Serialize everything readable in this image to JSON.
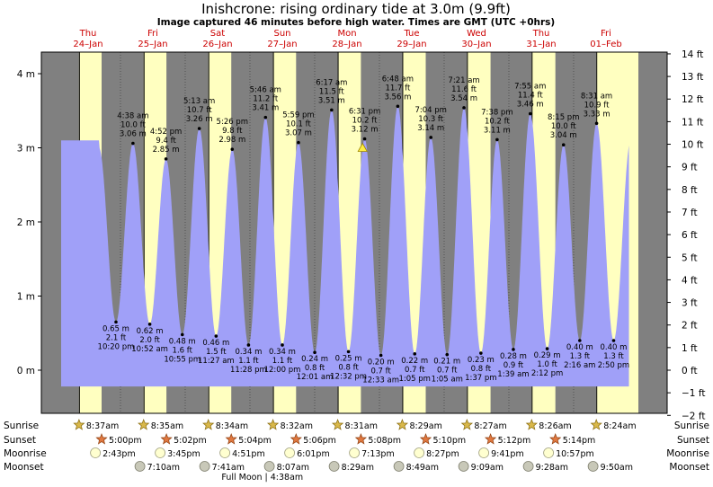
{
  "title": "Inishcrone: rising  ordinary tide at 3.0m (9.9ft)",
  "subtitle": "Image captured 46 minutes before high water. Times are GMT (UTC +0hrs)",
  "colors": {
    "night": "#808080",
    "day": "#ffffc0",
    "water": "#a0a0f8",
    "day_label": "#cc0000"
  },
  "days": [
    {
      "dow": "Thu",
      "date": "24–Jan"
    },
    {
      "dow": "Fri",
      "date": "25–Jan"
    },
    {
      "dow": "Sat",
      "date": "26–Jan"
    },
    {
      "dow": "Sun",
      "date": "27–Jan"
    },
    {
      "dow": "Mon",
      "date": "28–Jan"
    },
    {
      "dow": "Tue",
      "date": "29–Jan"
    },
    {
      "dow": "Wed",
      "date": "30–Jan"
    },
    {
      "dow": "Thu",
      "date": "31–Jan"
    },
    {
      "dow": "Fri",
      "date": "01–Feb"
    }
  ],
  "chart_data": {
    "type": "area",
    "ylabel_left_unit": "m",
    "ylabel_right_unit": "ft",
    "ylim_m": [
      -0.6,
      4.3
    ],
    "left_ticks": [
      "0 m",
      "1 m",
      "2 m",
      "3 m",
      "4 m"
    ],
    "right_ticks": [
      "−2 ft",
      "−1 ft",
      "0 ft",
      "1 ft",
      "2 ft",
      "3 ft",
      "4 ft",
      "5 ft",
      "6 ft",
      "7 ft",
      "8 ft",
      "9 ft",
      "10 ft",
      "11 ft",
      "12 ft",
      "13 ft",
      "14 ft"
    ],
    "x_range_hours": [
      0,
      216
    ],
    "tides": [
      {
        "type": "low",
        "time": "10:20 pm",
        "m": "0.65 m",
        "ft": "2.1 ft",
        "h": 22.33,
        "v": 0.65
      },
      {
        "type": "high",
        "time": "4:38 am",
        "m": "3.06 m",
        "ft": "10.0 ft",
        "h": 28.63,
        "v": 3.06
      },
      {
        "type": "low",
        "time": "10:52 am",
        "m": "0.62 m",
        "ft": "2.0 ft",
        "h": 34.87,
        "v": 0.62
      },
      {
        "type": "high",
        "time": "4:52 pm",
        "m": "2.85 m",
        "ft": "9.4 ft",
        "h": 40.87,
        "v": 2.85
      },
      {
        "type": "low",
        "time": "10:55 pm",
        "m": "0.48 m",
        "ft": "1.6 ft",
        "h": 46.92,
        "v": 0.48
      },
      {
        "type": "high",
        "time": "5:13 am",
        "m": "3.26 m",
        "ft": "10.7 ft",
        "h": 53.22,
        "v": 3.26
      },
      {
        "type": "low",
        "time": "11:27 am",
        "m": "0.46 m",
        "ft": "1.5 ft",
        "h": 59.45,
        "v": 0.46
      },
      {
        "type": "high",
        "time": "5:26 pm",
        "m": "2.98 m",
        "ft": "9.8 ft",
        "h": 65.43,
        "v": 2.98
      },
      {
        "type": "low",
        "time": "11:28 pm",
        "m": "0.34 m",
        "ft": "1.1 ft",
        "h": 71.47,
        "v": 0.34
      },
      {
        "type": "high",
        "time": "5:46 am",
        "m": "3.41 m",
        "ft": "11.2 ft",
        "h": 77.77,
        "v": 3.41
      },
      {
        "type": "low",
        "time": "12:00 pm",
        "m": "0.34 m",
        "ft": "1.1 ft",
        "h": 84.0,
        "v": 0.34
      },
      {
        "type": "high",
        "time": "5:59 pm",
        "m": "3.07 m",
        "ft": "10.1 ft",
        "h": 89.98,
        "v": 3.07
      },
      {
        "type": "low",
        "time": "12:01 am",
        "m": "0.24 m",
        "ft": "0.8 ft",
        "h": 96.02,
        "v": 0.24
      },
      {
        "type": "high",
        "time": "6:17 am",
        "m": "3.51 m",
        "ft": "11.5 ft",
        "h": 102.28,
        "v": 3.51
      },
      {
        "type": "low",
        "time": "12:32 pm",
        "m": "0.25 m",
        "ft": "0.8 ft",
        "h": 108.53,
        "v": 0.25
      },
      {
        "type": "high",
        "time": "6:31 pm",
        "m": "3.12 m",
        "ft": "10.2 ft",
        "h": 114.52,
        "v": 3.12
      },
      {
        "type": "low",
        "time": "12:33 am",
        "m": "0.20 m",
        "ft": "0.7 ft",
        "h": 120.55,
        "v": 0.2
      },
      {
        "type": "high",
        "time": "6:48 am",
        "m": "3.56 m",
        "ft": "11.7 ft",
        "h": 126.8,
        "v": 3.56
      },
      {
        "type": "low",
        "time": "1:05 pm",
        "m": "0.22 m",
        "ft": "0.7 ft",
        "h": 133.08,
        "v": 0.22
      },
      {
        "type": "high",
        "time": "7:04 pm",
        "m": "3.14 m",
        "ft": "10.3 ft",
        "h": 139.07,
        "v": 3.14
      },
      {
        "type": "low",
        "time": "1:05 am",
        "m": "0.21 m",
        "ft": "0.7 ft",
        "h": 145.08,
        "v": 0.21
      },
      {
        "type": "high",
        "time": "7:21 am",
        "m": "3.54 m",
        "ft": "11.6 ft",
        "h": 151.35,
        "v": 3.54
      },
      {
        "type": "low",
        "time": "1:37 pm",
        "m": "0.23 m",
        "ft": "0.8 ft",
        "h": 157.62,
        "v": 0.23
      },
      {
        "type": "high",
        "time": "7:38 pm",
        "m": "3.11 m",
        "ft": "10.2 ft",
        "h": 163.63,
        "v": 3.11
      },
      {
        "type": "low",
        "time": "1:39 am",
        "m": "0.28 m",
        "ft": "0.9 ft",
        "h": 169.65,
        "v": 0.28
      },
      {
        "type": "high",
        "time": "7:55 am",
        "m": "3.46 m",
        "ft": "11.4 ft",
        "h": 175.92,
        "v": 3.46
      },
      {
        "type": "low",
        "time": "2:12 pm",
        "m": "0.29 m",
        "ft": "1.0 ft",
        "h": 182.2,
        "v": 0.29
      },
      {
        "type": "high",
        "time": "8:15 pm",
        "m": "3.04 m",
        "ft": "10.0 ft",
        "h": 188.25,
        "v": 3.04
      },
      {
        "type": "low",
        "time": "2:16 am",
        "m": "0.40 m",
        "ft": "1.3 ft",
        "h": 194.27,
        "v": 0.4
      },
      {
        "type": "high",
        "time": "8:31 am",
        "m": "3.33 m",
        "ft": "10.9 ft",
        "h": 200.52,
        "v": 3.33
      },
      {
        "type": "low",
        "time": "2:50 pm",
        "m": "0.40 m",
        "ft": "1.3 ft",
        "h": 206.83,
        "v": 0.4
      }
    ],
    "current_level_m": 3.0,
    "current_h": 113.75,
    "daylight": [
      {
        "sunrise": "8:37am",
        "sunset": "5:00pm",
        "rise_h": 8.62,
        "set_h": 17.0
      },
      {
        "sunrise": "8:35am",
        "sunset": "5:02pm",
        "rise_h": 32.58,
        "set_h": 41.03
      },
      {
        "sunrise": "8:34am",
        "sunset": "5:04pm",
        "rise_h": 56.57,
        "set_h": 65.07
      },
      {
        "sunrise": "8:32am",
        "sunset": "5:06pm",
        "rise_h": 80.53,
        "set_h": 89.1
      },
      {
        "sunrise": "8:31am",
        "sunset": "5:08pm",
        "rise_h": 104.52,
        "set_h": 113.13
      },
      {
        "sunrise": "8:29am",
        "sunset": "5:10pm",
        "rise_h": 128.48,
        "set_h": 137.17
      },
      {
        "sunrise": "8:27am",
        "sunset": "5:12pm",
        "rise_h": 152.45,
        "set_h": 161.2
      },
      {
        "sunrise": "8:26am",
        "sunset": "5:14pm",
        "rise_h": 176.43,
        "set_h": 185.23
      },
      {
        "sunrise": "8:24am",
        "sunset": "",
        "rise_h": 200.4,
        "set_h": 216
      }
    ],
    "moonrise": [
      "2:43pm",
      "3:45pm",
      "4:51pm",
      "6:01pm",
      "7:13pm",
      "8:27pm",
      "9:41pm",
      "10:57pm"
    ],
    "moonset": [
      "7:10am",
      "7:41am",
      "8:07am",
      "8:29am",
      "8:49am",
      "9:09am",
      "9:28am",
      "9:50am"
    ],
    "moon_note": "Full Moon | 4:38am",
    "row_labels": {
      "sunrise": "Sunrise",
      "sunset": "Sunset",
      "moonrise": "Moonrise",
      "moonset": "Moonset"
    }
  }
}
